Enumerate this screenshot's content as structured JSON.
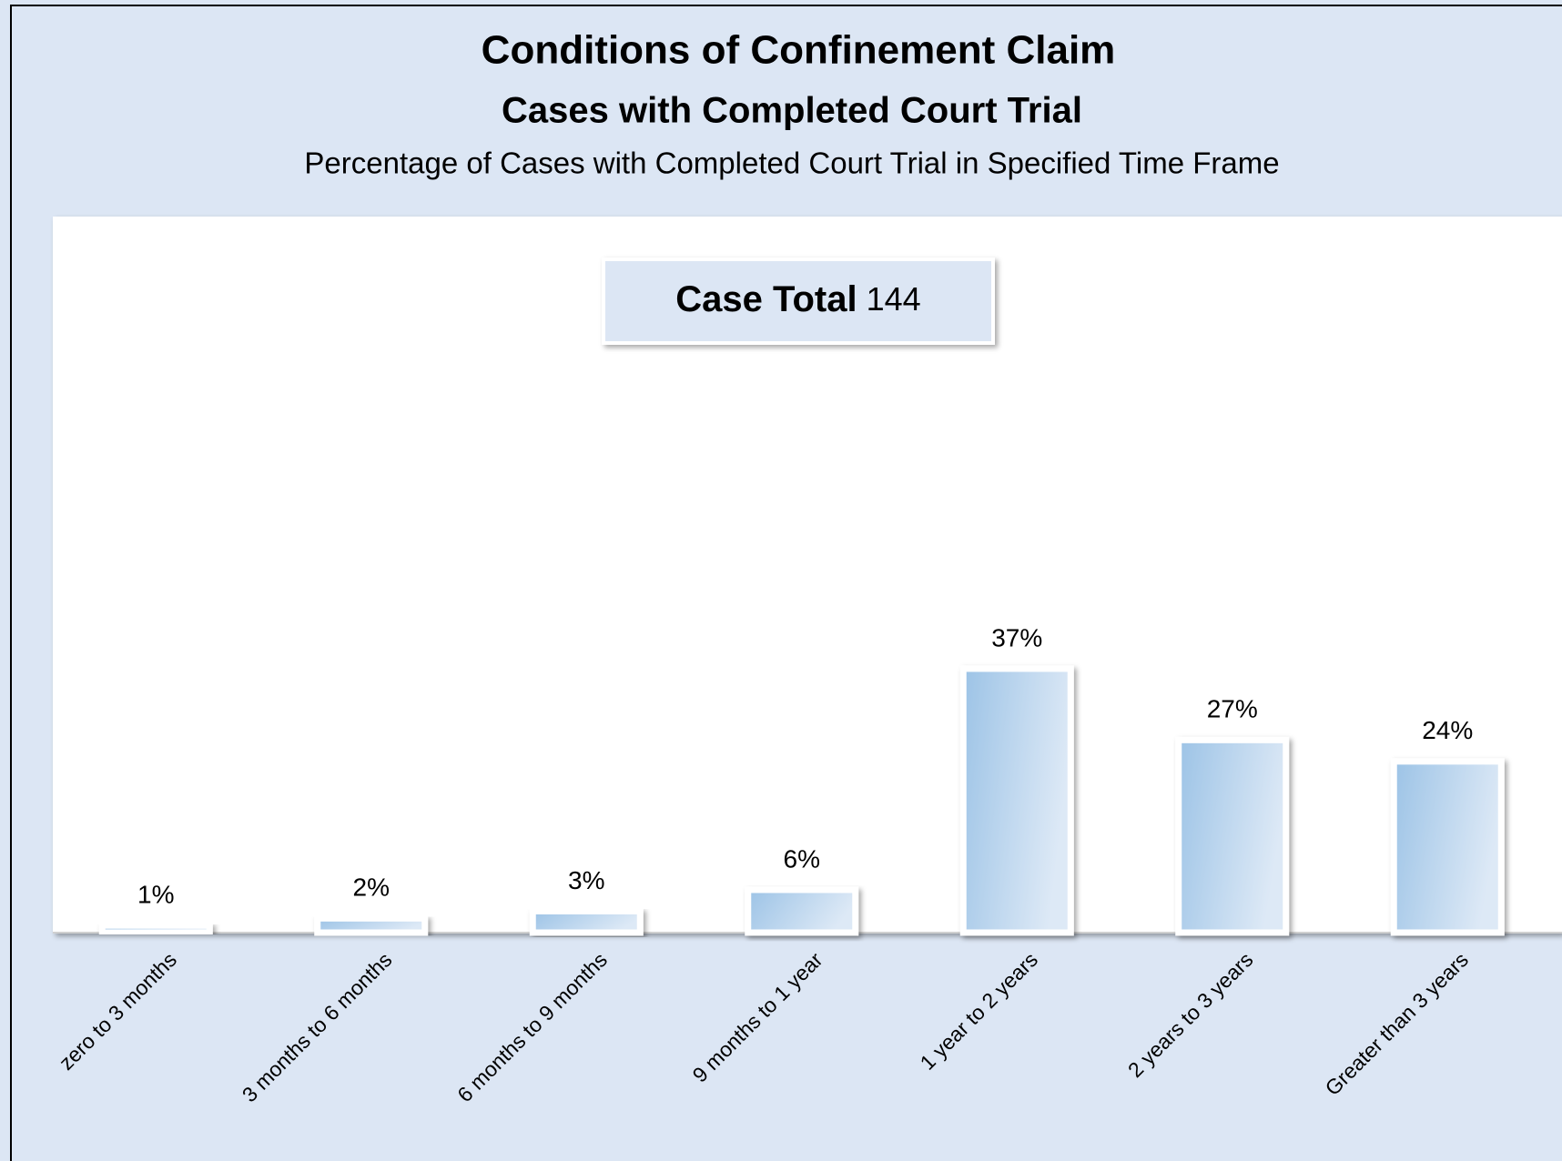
{
  "chart_data": {
    "type": "bar",
    "title": "Conditions of Confinement Claim",
    "subtitle": "Cases with Completed Court Trial",
    "description": "Percentage of Cases with Completed Court Trial in Specified Time Frame",
    "case_total_label": "Case Total",
    "case_total": 144,
    "categories": [
      "zero to 3 months",
      "3 months to 6 months",
      "6 months to 9 months",
      "9 months to 1 year",
      "1 year to 2 years",
      "2 years to 3 years",
      "Greater than 3 years"
    ],
    "values": [
      1,
      2,
      3,
      6,
      37,
      27,
      24
    ],
    "value_labels": [
      "1%",
      "2%",
      "3%",
      "6%",
      "37%",
      "27%",
      "24%"
    ],
    "color": "#9cc3e6"
  }
}
